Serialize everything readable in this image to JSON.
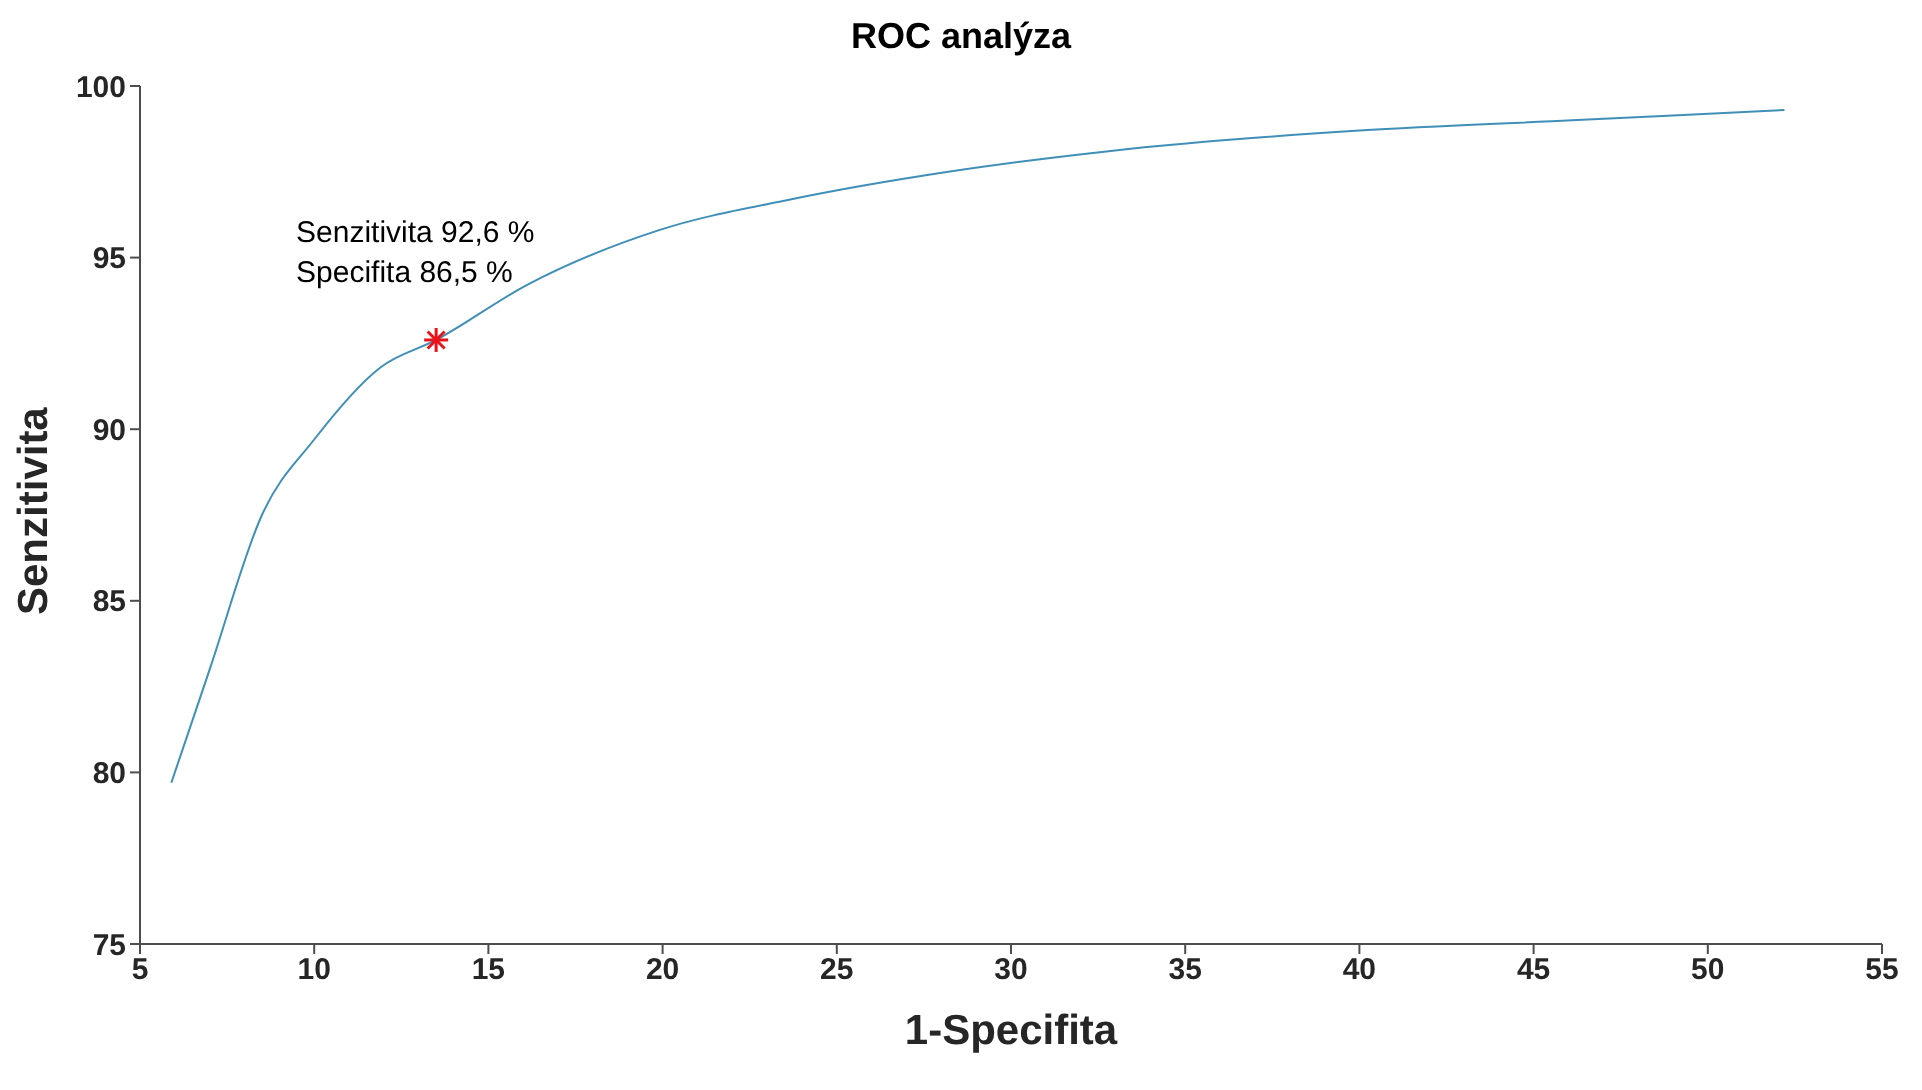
{
  "chart_data": {
    "type": "line",
    "title": "ROC analýza",
    "xlabel": "1-Specifita",
    "ylabel": "Senzitivita",
    "xlim": [
      5,
      55
    ],
    "xticks": [
      5,
      10,
      15,
      20,
      25,
      30,
      35,
      40,
      45,
      50,
      55
    ],
    "ylim": [
      75,
      100
    ],
    "yticks": [
      75,
      80,
      85,
      90,
      95,
      100
    ],
    "grid": false,
    "marker": "none",
    "line_style": "solid",
    "series": [
      {
        "color": "#3f8fb8",
        "x": [
          5.9,
          7.0,
          8.5,
          10.0,
          11.9,
          13.5,
          16.1,
          19.9,
          23.7,
          28.2,
          32.8,
          40.0,
          46.1,
          52.2
        ],
        "values": [
          79.7,
          83.0,
          87.5,
          89.7,
          91.8,
          92.6,
          94.2,
          95.8,
          96.7,
          97.5,
          98.1,
          98.7,
          99.0,
          99.3
        ]
      },
      {
        "type": "scatter",
        "color": "#e8141c",
        "marker": "cross",
        "x": [
          13.5
        ],
        "values": [
          92.6
        ]
      }
    ],
    "annotations": [
      "Senzitivita 92,6 %",
      "Specifita 86,5 %"
    ]
  }
}
